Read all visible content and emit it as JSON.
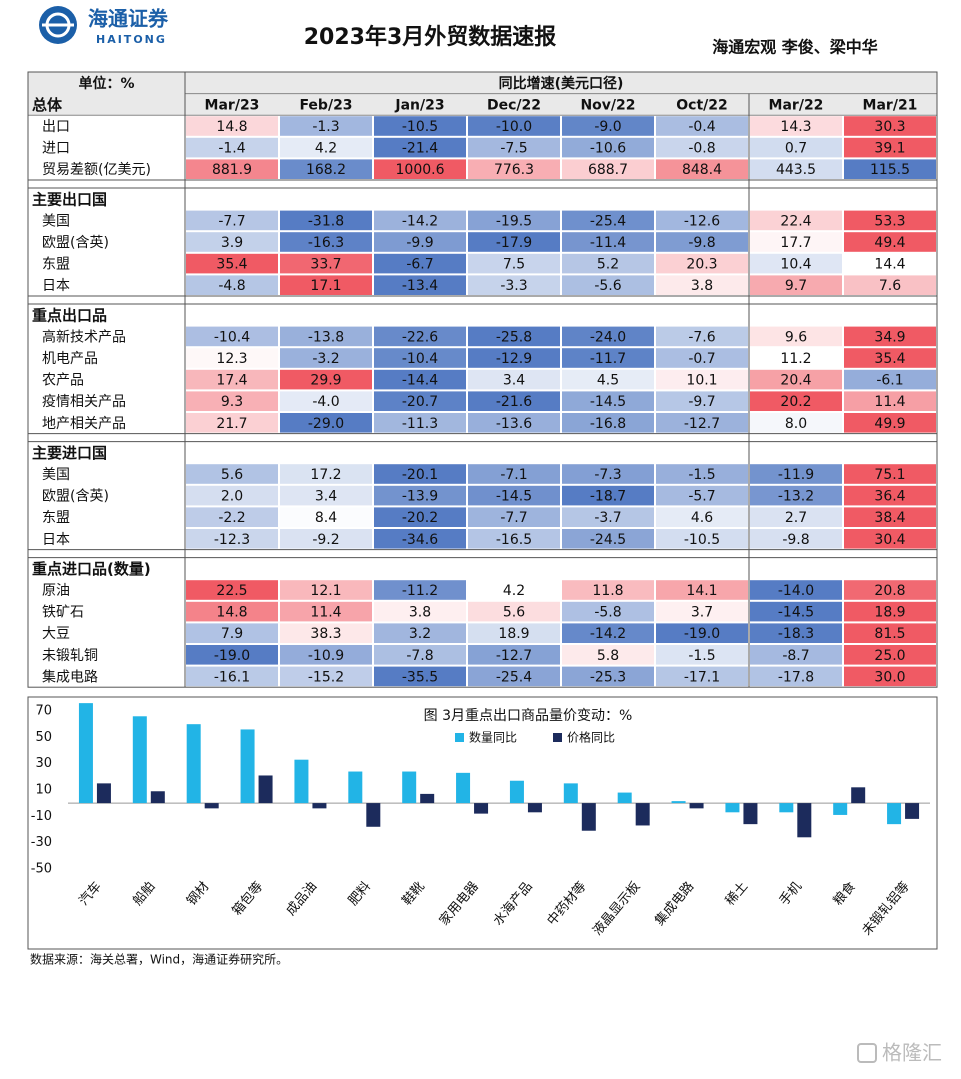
{
  "header": {
    "logo_cn": "海通证券",
    "logo_en": "HAITONG",
    "title": "2023年3月外贸数据速报",
    "authors": "海通宏观  李俊、梁中华"
  },
  "table": {
    "unit_label": "单位：%",
    "group_header": "同比增速(美元口径)",
    "columns": [
      "Mar/23",
      "Feb/23",
      "Jan/23",
      "Dec/22",
      "Nov/22",
      "Oct/22",
      "Mar/22",
      "Mar/21"
    ],
    "sections": [
      {
        "title": "总体",
        "rows": [
          {
            "label": "出口",
            "values": [
              "14.8",
              "-1.3",
              "-10.5",
              "-10.0",
              "-9.0",
              "-0.4",
              "14.3",
              "30.3"
            ]
          },
          {
            "label": "进口",
            "values": [
              "-1.4",
              "4.2",
              "-21.4",
              "-7.5",
              "-10.6",
              "-0.8",
              "0.7",
              "39.1"
            ]
          },
          {
            "label": "贸易差额(亿美元)",
            "values": [
              "881.9",
              "168.2",
              "1000.6",
              "776.3",
              "688.7",
              "848.4",
              "443.5",
              "115.5"
            ]
          }
        ]
      },
      {
        "title": "主要出口国",
        "rows": [
          {
            "label": "美国",
            "values": [
              "-7.7",
              "-31.8",
              "-14.2",
              "-19.5",
              "-25.4",
              "-12.6",
              "22.4",
              "53.3"
            ]
          },
          {
            "label": "欧盟(含英)",
            "values": [
              "3.9",
              "-16.3",
              "-9.9",
              "-17.9",
              "-11.4",
              "-9.8",
              "17.7",
              "49.4"
            ]
          },
          {
            "label": "东盟",
            "values": [
              "35.4",
              "33.7",
              "-6.7",
              "7.5",
              "5.2",
              "20.3",
              "10.4",
              "14.4"
            ]
          },
          {
            "label": "日本",
            "values": [
              "-4.8",
              "17.1",
              "-13.4",
              "-3.3",
              "-5.6",
              "3.8",
              "9.7",
              "7.6"
            ]
          }
        ]
      },
      {
        "title": "重点出口品",
        "rows": [
          {
            "label": "高新技术产品",
            "values": [
              "-10.4",
              "-13.8",
              "-22.6",
              "-25.8",
              "-24.0",
              "-7.6",
              "9.6",
              "34.9"
            ]
          },
          {
            "label": "机电产品",
            "values": [
              "12.3",
              "-3.2",
              "-10.4",
              "-12.9",
              "-11.7",
              "-0.7",
              "11.2",
              "35.4"
            ]
          },
          {
            "label": "农产品",
            "values": [
              "17.4",
              "29.9",
              "-14.4",
              "3.4",
              "4.5",
              "10.1",
              "20.4",
              "-6.1"
            ]
          },
          {
            "label": "疫情相关产品",
            "values": [
              "9.3",
              "-4.0",
              "-20.7",
              "-21.6",
              "-14.5",
              "-9.7",
              "20.2",
              "11.4"
            ]
          },
          {
            "label": "地产相关产品",
            "values": [
              "21.7",
              "-29.0",
              "-11.3",
              "-13.6",
              "-16.8",
              "-12.7",
              "8.0",
              "49.9"
            ]
          }
        ]
      },
      {
        "title": "主要进口国",
        "rows": [
          {
            "label": "美国",
            "values": [
              "5.6",
              "17.2",
              "-20.1",
              "-7.1",
              "-7.3",
              "-1.5",
              "-11.9",
              "75.1"
            ]
          },
          {
            "label": "欧盟(含英)",
            "values": [
              "2.0",
              "3.4",
              "-13.9",
              "-14.5",
              "-18.7",
              "-5.7",
              "-13.2",
              "36.4"
            ]
          },
          {
            "label": "东盟",
            "values": [
              "-2.2",
              "8.4",
              "-20.2",
              "-7.7",
              "-3.7",
              "4.6",
              "2.7",
              "38.4"
            ]
          },
          {
            "label": "日本",
            "values": [
              "-12.3",
              "-9.2",
              "-34.6",
              "-16.5",
              "-24.5",
              "-10.5",
              "-9.8",
              "30.4"
            ]
          }
        ]
      },
      {
        "title": "重点进口品(数量)",
        "rows": [
          {
            "label": "原油",
            "values": [
              "22.5",
              "12.1",
              "-11.2",
              "4.2",
              "11.8",
              "14.1",
              "-14.0",
              "20.8"
            ]
          },
          {
            "label": "铁矿石",
            "values": [
              "14.8",
              "11.4",
              "3.8",
              "5.6",
              "-5.8",
              "3.7",
              "-14.5",
              "18.9"
            ]
          },
          {
            "label": "大豆",
            "values": [
              "7.9",
              "38.3",
              "3.2",
              "18.9",
              "-14.2",
              "-19.0",
              "-18.3",
              "81.5"
            ]
          },
          {
            "label": "未锻轧铜",
            "values": [
              "-19.0",
              "-10.9",
              "-7.8",
              "-12.7",
              "5.8",
              "-1.5",
              "-8.7",
              "25.0"
            ]
          },
          {
            "label": "集成电路",
            "values": [
              "-16.1",
              "-15.2",
              "-35.5",
              "-25.4",
              "-25.3",
              "-17.1",
              "-17.8",
              "30.0"
            ]
          }
        ]
      }
    ]
  },
  "chart_data": {
    "type": "bar",
    "title": "图 3月重点出口商品量价变动：%",
    "categories": [
      "汽车",
      "船舶",
      "钢材",
      "箱包等",
      "成品油",
      "肥料",
      "鞋靴",
      "家用电器",
      "水海产品",
      "中药材等",
      "液晶显示板",
      "集成电路",
      "稀土",
      "手机",
      "粮食",
      "未锻轧铝等"
    ],
    "series": [
      {
        "name": "数量同比",
        "color": "#22b4e6",
        "values": [
          76,
          66,
          60,
          56,
          33,
          24,
          24,
          23,
          17,
          15,
          8,
          1.5,
          -7,
          -7,
          -9,
          -16
        ]
      },
      {
        "name": "价格同比",
        "color": "#1c2b5c",
        "values": [
          15,
          9,
          -4,
          21,
          -4,
          -18,
          7,
          -8,
          -7,
          -21,
          -17,
          -4,
          -16,
          -26,
          12,
          -12
        ]
      }
    ],
    "ylim": [
      -52,
      78
    ],
    "yticks": [
      -50,
      -30,
      -10,
      10,
      30,
      50,
      70
    ],
    "grid": false
  },
  "source": "数据来源：海关总署，Wind，海通证券研究所。",
  "watermark": "格隆汇"
}
